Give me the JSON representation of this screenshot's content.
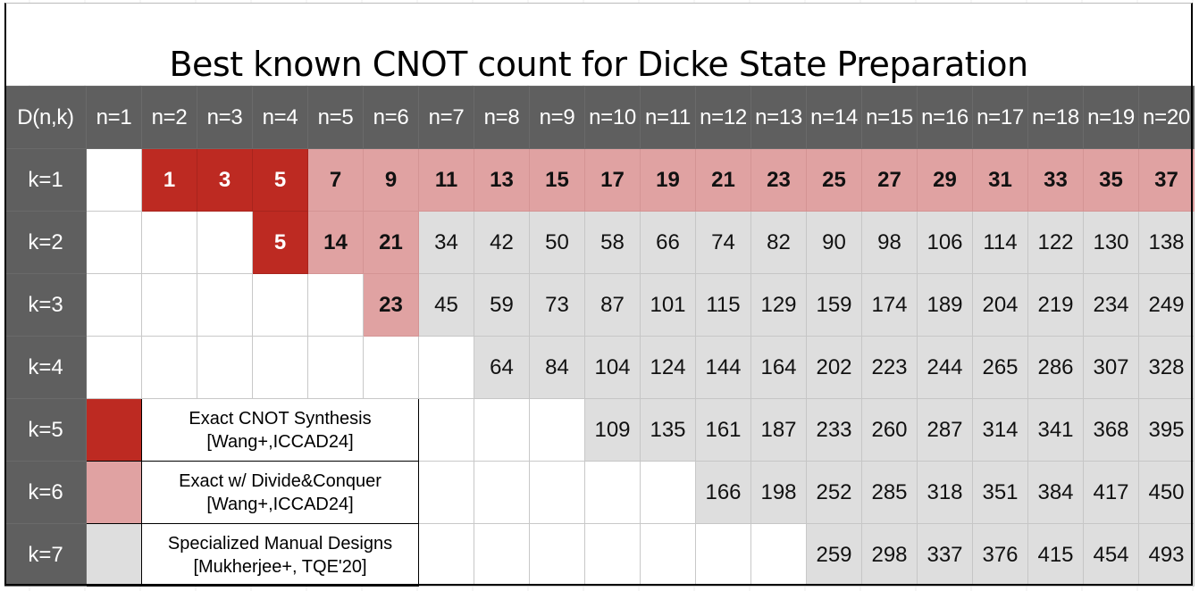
{
  "title": "Best known CNOT count for Dicke State Preparation",
  "header": [
    "D(n,k)",
    "n=1",
    "n=2",
    "n=3",
    "n=4",
    "n=5",
    "n=6",
    "n=7",
    "n=8",
    "n=9",
    "n=10",
    "n=11",
    "n=12",
    "n=13",
    "n=14",
    "n=15",
    "n=16",
    "n=17",
    "n=18",
    "n=19",
    "n=20"
  ],
  "rows": [
    {
      "label": "k=1",
      "cells": [
        {
          "v": "",
          "t": "empty"
        },
        {
          "v": "1",
          "t": "dark"
        },
        {
          "v": "3",
          "t": "dark"
        },
        {
          "v": "5",
          "t": "dark"
        },
        {
          "v": "7",
          "t": "light"
        },
        {
          "v": "9",
          "t": "light"
        },
        {
          "v": "11",
          "t": "light"
        },
        {
          "v": "13",
          "t": "light"
        },
        {
          "v": "15",
          "t": "light"
        },
        {
          "v": "17",
          "t": "light"
        },
        {
          "v": "19",
          "t": "light"
        },
        {
          "v": "21",
          "t": "light"
        },
        {
          "v": "23",
          "t": "light"
        },
        {
          "v": "25",
          "t": "light"
        },
        {
          "v": "27",
          "t": "light"
        },
        {
          "v": "29",
          "t": "light"
        },
        {
          "v": "31",
          "t": "light"
        },
        {
          "v": "33",
          "t": "light"
        },
        {
          "v": "35",
          "t": "light"
        },
        {
          "v": "37",
          "t": "light"
        }
      ]
    },
    {
      "label": "k=2",
      "cells": [
        {
          "v": "",
          "t": "empty"
        },
        {
          "v": "",
          "t": "empty"
        },
        {
          "v": "",
          "t": "empty"
        },
        {
          "v": "5",
          "t": "dark"
        },
        {
          "v": "14",
          "t": "light"
        },
        {
          "v": "21",
          "t": "light"
        },
        {
          "v": "34",
          "t": "gray"
        },
        {
          "v": "42",
          "t": "gray"
        },
        {
          "v": "50",
          "t": "gray"
        },
        {
          "v": "58",
          "t": "gray"
        },
        {
          "v": "66",
          "t": "gray"
        },
        {
          "v": "74",
          "t": "gray"
        },
        {
          "v": "82",
          "t": "gray"
        },
        {
          "v": "90",
          "t": "gray"
        },
        {
          "v": "98",
          "t": "gray"
        },
        {
          "v": "106",
          "t": "gray"
        },
        {
          "v": "114",
          "t": "gray"
        },
        {
          "v": "122",
          "t": "gray"
        },
        {
          "v": "130",
          "t": "gray"
        },
        {
          "v": "138",
          "t": "gray"
        }
      ]
    },
    {
      "label": "k=3",
      "cells": [
        {
          "v": "",
          "t": "empty"
        },
        {
          "v": "",
          "t": "empty"
        },
        {
          "v": "",
          "t": "empty"
        },
        {
          "v": "",
          "t": "empty"
        },
        {
          "v": "",
          "t": "empty"
        },
        {
          "v": "23",
          "t": "light"
        },
        {
          "v": "45",
          "t": "gray"
        },
        {
          "v": "59",
          "t": "gray"
        },
        {
          "v": "73",
          "t": "gray"
        },
        {
          "v": "87",
          "t": "gray"
        },
        {
          "v": "101",
          "t": "gray"
        },
        {
          "v": "115",
          "t": "gray"
        },
        {
          "v": "129",
          "t": "gray"
        },
        {
          "v": "159",
          "t": "gray"
        },
        {
          "v": "174",
          "t": "gray"
        },
        {
          "v": "189",
          "t": "gray"
        },
        {
          "v": "204",
          "t": "gray"
        },
        {
          "v": "219",
          "t": "gray"
        },
        {
          "v": "234",
          "t": "gray"
        },
        {
          "v": "249",
          "t": "gray"
        }
      ]
    },
    {
      "label": "k=4",
      "cells": [
        {
          "v": "",
          "t": "empty"
        },
        {
          "v": "",
          "t": "empty"
        },
        {
          "v": "",
          "t": "empty"
        },
        {
          "v": "",
          "t": "empty"
        },
        {
          "v": "",
          "t": "empty"
        },
        {
          "v": "",
          "t": "empty"
        },
        {
          "v": "",
          "t": "empty"
        },
        {
          "v": "64",
          "t": "gray"
        },
        {
          "v": "84",
          "t": "gray"
        },
        {
          "v": "104",
          "t": "gray"
        },
        {
          "v": "124",
          "t": "gray"
        },
        {
          "v": "144",
          "t": "gray"
        },
        {
          "v": "164",
          "t": "gray"
        },
        {
          "v": "202",
          "t": "gray"
        },
        {
          "v": "223",
          "t": "gray"
        },
        {
          "v": "244",
          "t": "gray"
        },
        {
          "v": "265",
          "t": "gray"
        },
        {
          "v": "286",
          "t": "gray"
        },
        {
          "v": "307",
          "t": "gray"
        },
        {
          "v": "328",
          "t": "gray"
        }
      ]
    },
    {
      "label": "k=5",
      "legend": 0,
      "cells": [
        {
          "v": "",
          "t": "empty"
        },
        {
          "v": "",
          "t": "empty"
        },
        {
          "v": "",
          "t": "empty"
        },
        {
          "v": "109",
          "t": "gray"
        },
        {
          "v": "135",
          "t": "gray"
        },
        {
          "v": "161",
          "t": "gray"
        },
        {
          "v": "187",
          "t": "gray"
        },
        {
          "v": "233",
          "t": "gray"
        },
        {
          "v": "260",
          "t": "gray"
        },
        {
          "v": "287",
          "t": "gray"
        },
        {
          "v": "314",
          "t": "gray"
        },
        {
          "v": "341",
          "t": "gray"
        },
        {
          "v": "368",
          "t": "gray"
        },
        {
          "v": "395",
          "t": "gray"
        }
      ]
    },
    {
      "label": "k=6",
      "legend": 1,
      "cells": [
        {
          "v": "",
          "t": "empty"
        },
        {
          "v": "",
          "t": "empty"
        },
        {
          "v": "",
          "t": "empty"
        },
        {
          "v": "",
          "t": "empty"
        },
        {
          "v": "",
          "t": "empty"
        },
        {
          "v": "166",
          "t": "gray"
        },
        {
          "v": "198",
          "t": "gray"
        },
        {
          "v": "252",
          "t": "gray"
        },
        {
          "v": "285",
          "t": "gray"
        },
        {
          "v": "318",
          "t": "gray"
        },
        {
          "v": "351",
          "t": "gray"
        },
        {
          "v": "384",
          "t": "gray"
        },
        {
          "v": "417",
          "t": "gray"
        },
        {
          "v": "450",
          "t": "gray"
        }
      ]
    },
    {
      "label": "k=7",
      "legend": 2,
      "cells": [
        {
          "v": "",
          "t": "empty"
        },
        {
          "v": "",
          "t": "empty"
        },
        {
          "v": "",
          "t": "empty"
        },
        {
          "v": "",
          "t": "empty"
        },
        {
          "v": "",
          "t": "empty"
        },
        {
          "v": "",
          "t": "empty"
        },
        {
          "v": "",
          "t": "empty"
        },
        {
          "v": "259",
          "t": "gray"
        },
        {
          "v": "298",
          "t": "gray"
        },
        {
          "v": "337",
          "t": "gray"
        },
        {
          "v": "376",
          "t": "gray"
        },
        {
          "v": "415",
          "t": "gray"
        },
        {
          "v": "454",
          "t": "gray"
        },
        {
          "v": "493",
          "t": "gray"
        }
      ]
    }
  ],
  "legend": [
    {
      "swatch": "dark",
      "color": "#bd2a22",
      "line1": "Exact CNOT Synthesis",
      "line2": "[Wang+,ICCAD24]"
    },
    {
      "swatch": "light",
      "color": "#e0a2a2",
      "line1": "Exact w/ Divide&Conquer",
      "line2": "[Wang+,ICCAD24]"
    },
    {
      "swatch": "gray",
      "color": "#dedede",
      "line1": "Specialized Manual Designs",
      "line2": "[Mukherjee+, TQE'20]"
    }
  ]
}
